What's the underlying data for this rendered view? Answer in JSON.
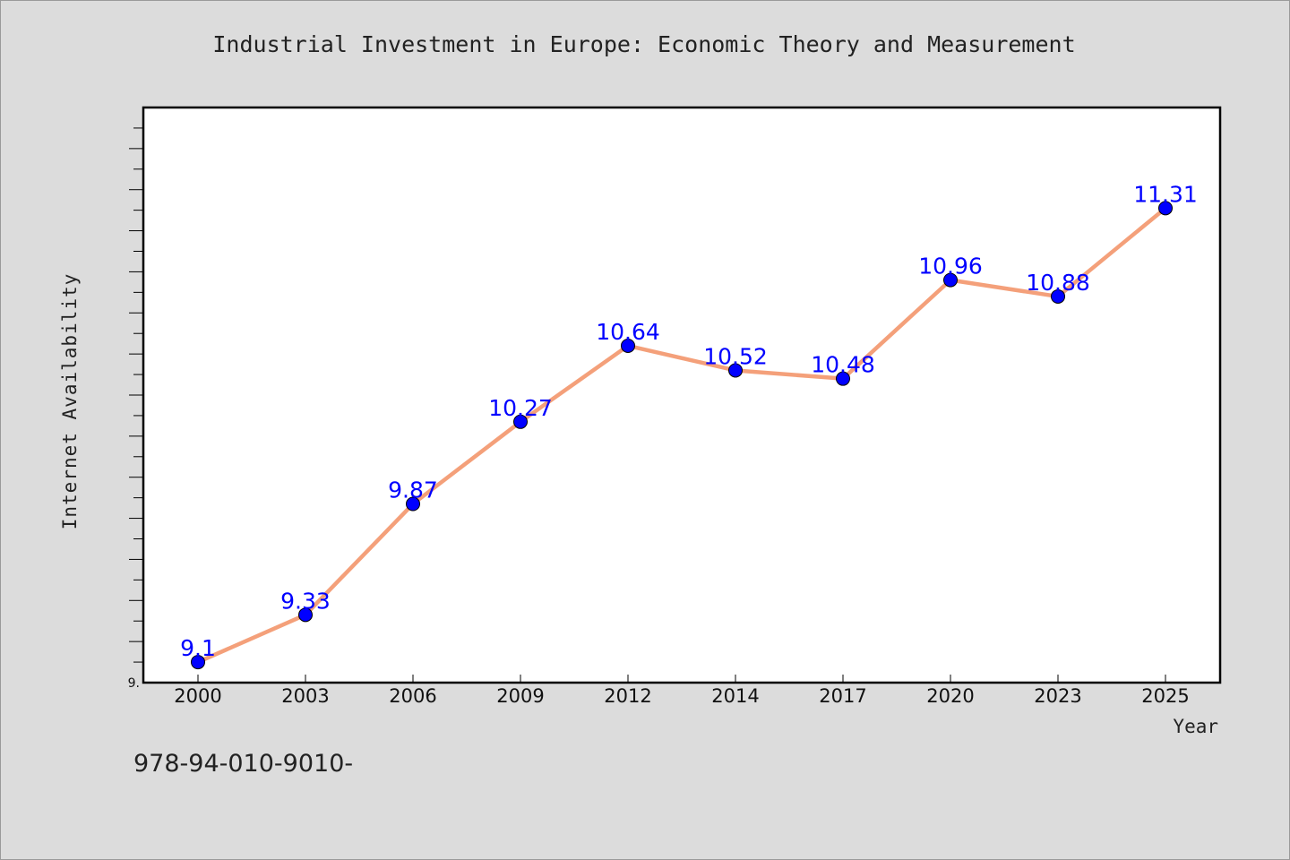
{
  "chart_data": {
    "type": "line",
    "title": "Industrial Investment in Europe: Economic Theory and Measurement",
    "xlabel": "Year",
    "ylabel": "Internet Availability",
    "categories": [
      "2000",
      "2003",
      "2006",
      "2009",
      "2012",
      "2014",
      "2017",
      "2020",
      "2023",
      "2025"
    ],
    "series": [
      {
        "values": [
          9.1,
          9.33,
          9.87,
          10.27,
          10.64,
          10.52,
          10.48,
          10.96,
          10.88,
          11.31
        ],
        "labels": [
          "9.1",
          "9.33",
          "9.87",
          "10.27",
          "10.64",
          "10.52",
          "10.48",
          "10.96",
          "10.88",
          "11.31"
        ],
        "line_color": "#f4a07a",
        "marker_color": "#0000ff"
      }
    ],
    "y_tick_labels": [
      {
        "value": 9.0,
        "label": "9."
      }
    ],
    "ylim": [
      9.0,
      11.8
    ],
    "grid": false,
    "legend": "none"
  },
  "footer": {
    "isbn": "978-94-010-9010-"
  }
}
